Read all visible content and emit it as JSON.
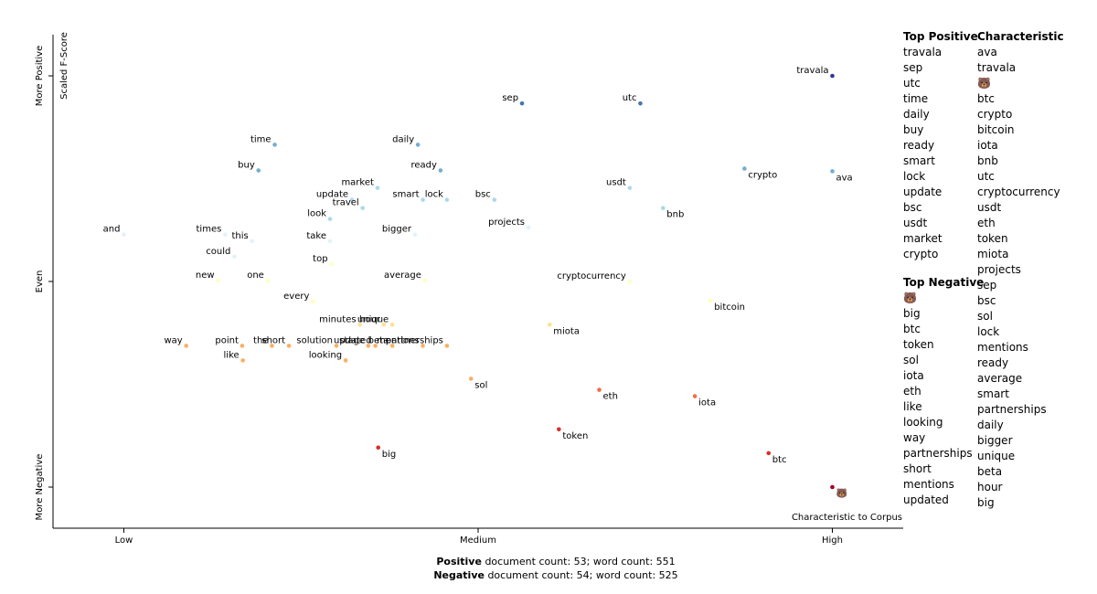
{
  "chart_data": {
    "type": "scatter",
    "y_label": "Scaled F-Score",
    "x_label": "Characteristic to Corpus",
    "xlim": [
      -0.1,
      1.1
    ],
    "ylim": [
      -1.2,
      1.2
    ],
    "xticks": [
      {
        "value": 0,
        "label": "Low"
      },
      {
        "value": 0.5,
        "label": "Medium"
      },
      {
        "value": 1,
        "label": "High"
      }
    ],
    "yticks": [
      {
        "value": 1,
        "label": "More Positive"
      },
      {
        "value": 0,
        "label": "Even"
      },
      {
        "value": -1,
        "label": "More Negative"
      }
    ],
    "color_scale": [
      "#a50026",
      "#d73027",
      "#f46d43",
      "#fdae61",
      "#fee090",
      "#ffffbf",
      "#e0f3f8",
      "#abd9e9",
      "#74add1",
      "#4575b4",
      "#313695"
    ],
    "points": [
      {
        "term": "travala",
        "x": 1.0,
        "y": 1.0
      },
      {
        "term": "sep",
        "x": 0.562,
        "y": 0.866
      },
      {
        "term": "utc",
        "x": 0.729,
        "y": 0.866
      },
      {
        "term": "time",
        "x": 0.213,
        "y": 0.665
      },
      {
        "term": "daily",
        "x": 0.415,
        "y": 0.665
      },
      {
        "term": "buy",
        "x": 0.19,
        "y": 0.54
      },
      {
        "term": "ready",
        "x": 0.447,
        "y": 0.54
      },
      {
        "term": "crypto",
        "x": 0.876,
        "y": 0.549
      },
      {
        "term": "ava",
        "x": 1.0,
        "y": 0.536
      },
      {
        "term": "market",
        "x": 0.358,
        "y": 0.455
      },
      {
        "term": "usdt",
        "x": 0.714,
        "y": 0.455
      },
      {
        "term": "update",
        "x": 0.322,
        "y": 0.397
      },
      {
        "term": "smart",
        "x": 0.422,
        "y": 0.397
      },
      {
        "term": "lock",
        "x": 0.456,
        "y": 0.397
      },
      {
        "term": "bsc",
        "x": 0.523,
        "y": 0.397
      },
      {
        "term": "travel",
        "x": 0.337,
        "y": 0.357
      },
      {
        "term": "bnb",
        "x": 0.761,
        "y": 0.357
      },
      {
        "term": "look",
        "x": 0.291,
        "y": 0.304
      },
      {
        "term": "projects",
        "x": 0.571,
        "y": 0.263
      },
      {
        "term": "and",
        "x": 0.0,
        "y": 0.228
      },
      {
        "term": "times",
        "x": 0.143,
        "y": 0.228
      },
      {
        "term": "this",
        "x": 0.181,
        "y": 0.196
      },
      {
        "term": "bigger",
        "x": 0.411,
        "y": 0.228
      },
      {
        "term": "take",
        "x": 0.291,
        "y": 0.196
      },
      {
        "term": "could",
        "x": 0.156,
        "y": 0.121
      },
      {
        "term": "top",
        "x": 0.293,
        "y": 0.085
      },
      {
        "term": "new",
        "x": 0.133,
        "y": 0.004
      },
      {
        "term": "one",
        "x": 0.203,
        "y": 0.004
      },
      {
        "term": "average",
        "x": 0.425,
        "y": 0.004
      },
      {
        "term": "cryptocurrency",
        "x": 0.714,
        "y": 0.0
      },
      {
        "term": "every",
        "x": 0.267,
        "y": -0.098
      },
      {
        "term": "bitcoin",
        "x": 0.828,
        "y": -0.094
      },
      {
        "term": "minutes",
        "x": 0.333,
        "y": -0.21
      },
      {
        "term": "hour",
        "x": 0.367,
        "y": -0.21
      },
      {
        "term": "unique",
        "x": 0.379,
        "y": -0.21
      },
      {
        "term": "miota",
        "x": 0.601,
        "y": -0.21
      },
      {
        "term": "way",
        "x": 0.088,
        "y": -0.313
      },
      {
        "term": "point",
        "x": 0.167,
        "y": -0.313
      },
      {
        "term": "the",
        "x": 0.209,
        "y": -0.313
      },
      {
        "term": "short",
        "x": 0.233,
        "y": -0.313
      },
      {
        "term": "solution",
        "x": 0.3,
        "y": -0.313
      },
      {
        "term": "stage",
        "x": 0.345,
        "y": -0.313
      },
      {
        "term": "updated",
        "x": 0.355,
        "y": -0.313
      },
      {
        "term": "beta",
        "x": 0.379,
        "y": -0.313
      },
      {
        "term": "mentions",
        "x": 0.422,
        "y": -0.313
      },
      {
        "term": "partnerships",
        "x": 0.456,
        "y": -0.313
      },
      {
        "term": "like",
        "x": 0.168,
        "y": -0.384
      },
      {
        "term": "looking",
        "x": 0.313,
        "y": -0.384
      },
      {
        "term": "sol",
        "x": 0.49,
        "y": -0.473
      },
      {
        "term": "eth",
        "x": 0.671,
        "y": -0.527
      },
      {
        "term": "iota",
        "x": 0.806,
        "y": -0.558
      },
      {
        "term": "token",
        "x": 0.614,
        "y": -0.719
      },
      {
        "term": "big",
        "x": 0.359,
        "y": -0.808
      },
      {
        "term": "btc",
        "x": 0.91,
        "y": -0.835
      },
      {
        "term": "🐻",
        "x": 1.0,
        "y": -1.0
      }
    ],
    "top_positive": {
      "title": "Top Positive",
      "terms": [
        "travala",
        "sep",
        "utc",
        "time",
        "daily",
        "buy",
        "ready",
        "smart",
        "lock",
        "update",
        "bsc",
        "usdt",
        "market",
        "crypto"
      ]
    },
    "top_negative": {
      "title": "Top Negative",
      "terms": [
        "🐻",
        "big",
        "btc",
        "token",
        "sol",
        "iota",
        "eth",
        "like",
        "looking",
        "way",
        "partnerships",
        "short",
        "mentions",
        "updated"
      ]
    },
    "characteristic": {
      "title": "Characteristic",
      "terms": [
        "ava",
        "travala",
        "🐻",
        "btc",
        "crypto",
        "bitcoin",
        "iota",
        "bnb",
        "utc",
        "cryptocurrency",
        "usdt",
        "eth",
        "token",
        "miota",
        "projects",
        "sep",
        "bsc",
        "sol",
        "lock",
        "mentions",
        "ready",
        "average",
        "smart",
        "partnerships",
        "daily",
        "bigger",
        "unique",
        "beta",
        "hour",
        "big"
      ]
    },
    "footer": [
      {
        "label": "Positive",
        "text": " document count: 53; word count: 551"
      },
      {
        "label": "Negative",
        "text": " document count: 54; word count: 525"
      }
    ]
  }
}
